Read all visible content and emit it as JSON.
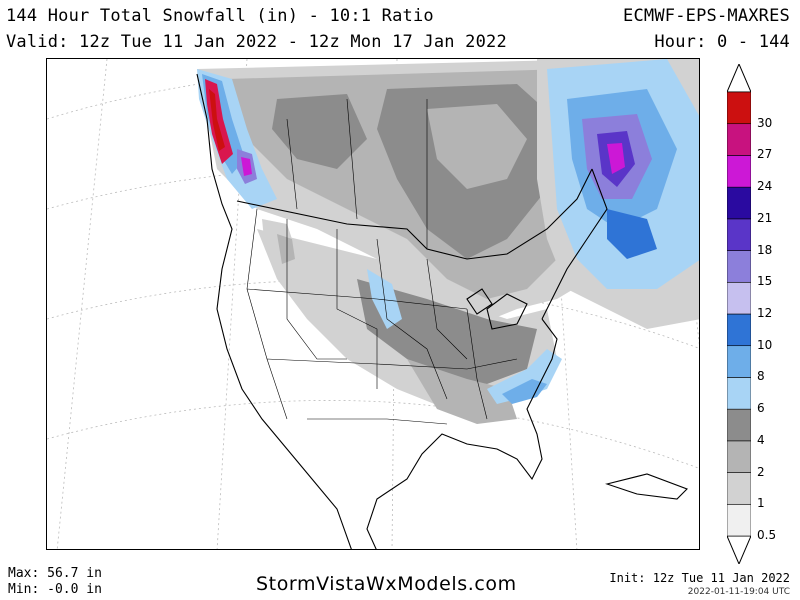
{
  "header": {
    "title": "144 Hour Total Snowfall (in) - 10:1 Ratio",
    "valid": "Valid: 12z Tue 11 Jan 2022 - 12z Mon 17 Jan 2022",
    "model": "ECMWF-EPS-MAXRES",
    "hour": "Hour: 0 - 144"
  },
  "legend": {
    "entries": [
      {
        "label": "0.5",
        "color": "#f0f0f0"
      },
      {
        "label": "1",
        "color": "#d2d2d2"
      },
      {
        "label": "2",
        "color": "#b4b4b4"
      },
      {
        "label": "4",
        "color": "#8c8c8c"
      },
      {
        "label": "6",
        "color": "#a8d4f5"
      },
      {
        "label": "8",
        "color": "#6eaee9"
      },
      {
        "label": "10",
        "color": "#2f74d6"
      },
      {
        "label": "12",
        "color": "#c6c0ef"
      },
      {
        "label": "15",
        "color": "#8c7fdb"
      },
      {
        "label": "18",
        "color": "#5a35c8"
      },
      {
        "label": "21",
        "color": "#2a0aa0"
      },
      {
        "label": "24",
        "color": "#cc18d6"
      },
      {
        "label": "27",
        "color": "#c8127f"
      },
      {
        "label": "30",
        "color": "#d9164e"
      }
    ],
    "top_color": "#cc1010"
  },
  "stats": {
    "max": "Max: 56.7 in",
    "min": "Min: -0.0 in"
  },
  "brand": "StormVistaWxModels.com",
  "init": "Init: 12z Tue 11 Jan 2022",
  "stamp": "2022-01-11-19:04 UTC"
}
